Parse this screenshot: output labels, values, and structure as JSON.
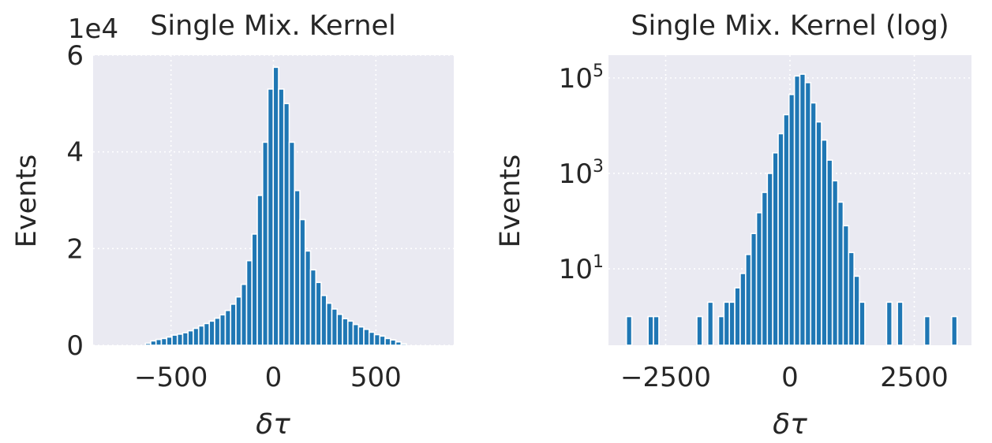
{
  "figure": {
    "style": {
      "plot_bg": "#eaeaf2",
      "grid": "#ffffff",
      "bar_fill": "#1f77b4",
      "bar_edge": "#ffffff",
      "text": "#262626"
    }
  },
  "chart_data": [
    {
      "type": "bar",
      "title": "Single Mix. Kernel",
      "xlabel": "δτ",
      "ylabel": "Events",
      "offset_text": "1e4",
      "xlim": [
        -880,
        880
      ],
      "ylim": [
        0,
        6.0
      ],
      "y_scale": "linear",
      "y_multiplier": 10000,
      "grid": true,
      "xticks": [
        {
          "v": -500,
          "label": "−500"
        },
        {
          "v": 0,
          "label": "0"
        },
        {
          "v": 500,
          "label": "500"
        }
      ],
      "yticks": [
        {
          "v": 0,
          "label": "0"
        },
        {
          "v": 2,
          "label": "2"
        },
        {
          "v": 4,
          "label": "4"
        },
        {
          "v": 6,
          "label": "6"
        }
      ],
      "bin_width": 26,
      "x": [
        -612,
        -586,
        -560,
        -534,
        -508,
        -482,
        -456,
        -430,
        -404,
        -378,
        -352,
        -326,
        -300,
        -274,
        -248,
        -222,
        -196,
        -170,
        -144,
        -118,
        -92,
        -66,
        -40,
        -14,
        12,
        38,
        64,
        90,
        116,
        142,
        168,
        194,
        220,
        246,
        272,
        298,
        324,
        350,
        376,
        402,
        428,
        454,
        480,
        506,
        532,
        558,
        584,
        610,
        636
      ],
      "values": [
        0.04,
        0.09,
        0.12,
        0.14,
        0.17,
        0.21,
        0.23,
        0.26,
        0.3,
        0.35,
        0.4,
        0.45,
        0.5,
        0.56,
        0.63,
        0.72,
        0.85,
        1.0,
        1.26,
        1.75,
        2.3,
        3.1,
        4.2,
        5.3,
        5.75,
        5.3,
        5.0,
        4.2,
        3.2,
        2.6,
        1.95,
        1.56,
        1.3,
        1.03,
        0.87,
        0.75,
        0.64,
        0.55,
        0.5,
        0.43,
        0.38,
        0.33,
        0.27,
        0.22,
        0.19,
        0.14,
        0.11,
        0.07,
        0.03
      ]
    },
    {
      "type": "bar",
      "title": "Single Mix. Kernel (log)",
      "xlabel": "δτ",
      "ylabel": "Events",
      "xlim": [
        -3650,
        3650
      ],
      "ylim": [
        0.25,
        300000
      ],
      "y_scale": "log",
      "grid": true,
      "xticks": [
        {
          "v": -2500,
          "label": "−2500"
        },
        {
          "v": 0,
          "label": "0"
        },
        {
          "v": 2500,
          "label": "2500"
        }
      ],
      "yticks": [
        {
          "v": 10,
          "label": "10",
          "exp": "1"
        },
        {
          "v": 1000,
          "label": "10",
          "exp": "3"
        },
        {
          "v": 100000,
          "label": "10",
          "exp": "5"
        }
      ],
      "bin_width": 109,
      "x": [
        -3235,
        -2799,
        -2690,
        -1818,
        -1600,
        -1382,
        -1273,
        -1164,
        -1055,
        -946,
        -837,
        -728,
        -619,
        -510,
        -401,
        -292,
        -183,
        -74,
        35,
        144,
        253,
        362,
        471,
        580,
        689,
        798,
        907,
        1016,
        1125,
        1234,
        1343,
        1452,
        1997,
        2215,
        2760,
        3305
      ],
      "values": [
        1,
        1,
        1,
        1,
        2,
        1,
        2,
        2,
        4,
        8,
        20,
        55,
        150,
        400,
        1000,
        2700,
        6800,
        17000,
        45000,
        110000,
        120000,
        80000,
        30000,
        12000,
        5000,
        1900,
        700,
        250,
        80,
        22,
        7,
        2,
        2,
        2,
        1,
        1
      ]
    }
  ]
}
